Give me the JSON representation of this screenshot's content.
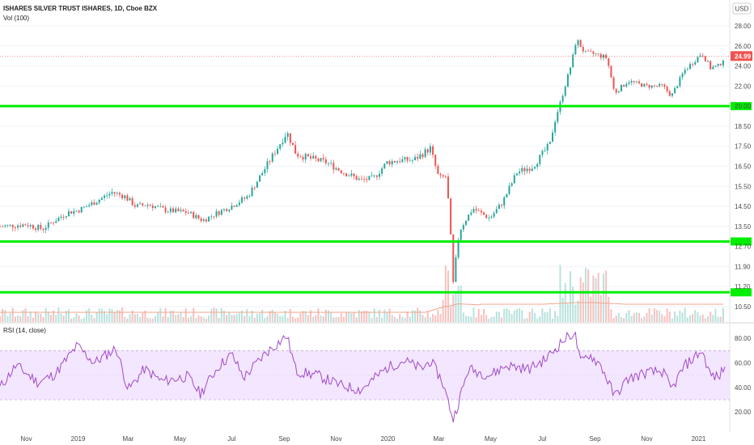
{
  "header": {
    "title": "ISHARES SILVER TRUST ISHARES, 1D, Cboe BZX",
    "vol_label": "Vol (100)",
    "currency": "USD"
  },
  "rsi": {
    "label": "RSI (14, close)"
  },
  "colors": {
    "up": "#26a69a",
    "down": "#ef5350",
    "level_line": "#00ee00",
    "rsi_line": "#a04bc7",
    "rsi_band": "#eedcff",
    "price_badge": "#ef5350",
    "ma_line": "#f2a48c"
  },
  "chart_data": [
    {
      "type": "candlestick",
      "title": "ISHARES SILVER TRUST ISHARES, 1D, Cboe BZX",
      "y_ticks": [
        "28.00",
        "26.00",
        "24.00",
        "22.00",
        "20.00",
        "18.50",
        "17.50",
        "16.50",
        "15.50",
        "14.50",
        "13.50",
        "12.70",
        "11.90",
        "11.20",
        "10.50"
      ],
      "x_ticks": [
        "Nov",
        "2019",
        "Mar",
        "May",
        "Jul",
        "Sep",
        "Nov",
        "2020",
        "Mar",
        "May",
        "Jul",
        "Sep",
        "Nov",
        "2021"
      ],
      "last_price": "24.99",
      "horizontal_levels": [
        20.0,
        12.9,
        11.0
      ],
      "price_path": [
        [
          "2018-10-01",
          13.5
        ],
        [
          "2018-11-01",
          13.6
        ],
        [
          "2018-11-20",
          13.4
        ],
        [
          "2018-12-20",
          14.2
        ],
        [
          "2019-01-01",
          14.3
        ],
        [
          "2019-01-20",
          14.7
        ],
        [
          "2019-02-10",
          15.2
        ],
        [
          "2019-02-25",
          15.0
        ],
        [
          "2019-03-10",
          14.5
        ],
        [
          "2019-03-25",
          14.6
        ],
        [
          "2019-04-15",
          14.3
        ],
        [
          "2019-05-10",
          14.2
        ],
        [
          "2019-05-28",
          13.8
        ],
        [
          "2019-06-15",
          14.2
        ],
        [
          "2019-06-30",
          14.5
        ],
        [
          "2019-07-20",
          15.0
        ],
        [
          "2019-08-15",
          16.8
        ],
        [
          "2019-09-04",
          18.2
        ],
        [
          "2019-09-15",
          17.1
        ],
        [
          "2019-10-01",
          16.9
        ],
        [
          "2019-10-20",
          16.7
        ],
        [
          "2019-11-10",
          16.2
        ],
        [
          "2019-11-30",
          15.8
        ],
        [
          "2019-12-15",
          15.9
        ],
        [
          "2019-12-31",
          16.7
        ],
        [
          "2020-01-15",
          16.8
        ],
        [
          "2020-01-31",
          16.8
        ],
        [
          "2020-02-20",
          17.4
        ],
        [
          "2020-03-01",
          15.9
        ],
        [
          "2020-03-10",
          16.0
        ],
        [
          "2020-03-18",
          11.3
        ],
        [
          "2020-03-25",
          13.3
        ],
        [
          "2020-04-10",
          14.4
        ],
        [
          "2020-04-30",
          13.9
        ],
        [
          "2020-05-15",
          14.7
        ],
        [
          "2020-06-01",
          16.2
        ],
        [
          "2020-06-20",
          16.5
        ],
        [
          "2020-07-10",
          17.6
        ],
        [
          "2020-07-22",
          20.3
        ],
        [
          "2020-08-05",
          24.5
        ],
        [
          "2020-08-10",
          26.7
        ],
        [
          "2020-08-20",
          25.3
        ],
        [
          "2020-09-01",
          25.2
        ],
        [
          "2020-09-15",
          24.8
        ],
        [
          "2020-09-24",
          21.3
        ],
        [
          "2020-10-10",
          22.5
        ],
        [
          "2020-10-31",
          22.0
        ],
        [
          "2020-11-20",
          22.0
        ],
        [
          "2020-11-30",
          21.0
        ],
        [
          "2020-12-15",
          23.5
        ],
        [
          "2021-01-05",
          25.3
        ],
        [
          "2021-01-15",
          23.8
        ],
        [
          "2021-01-25",
          24.0
        ],
        [
          "2021-02-01",
          24.99
        ]
      ],
      "volume_series_name": "Vol (100)",
      "moving_average": "Vol (100)"
    },
    {
      "type": "line",
      "title": "RSI (14, close)",
      "y_ticks": [
        "80.00",
        "60.00",
        "40.00",
        "20.00"
      ],
      "band": [
        30,
        70
      ],
      "rsi_path": [
        [
          "2018-10-01",
          40
        ],
        [
          "2018-10-20",
          58
        ],
        [
          "2018-11-15",
          44
        ],
        [
          "2018-12-05",
          51
        ],
        [
          "2018-12-31",
          74
        ],
        [
          "2019-01-20",
          60
        ],
        [
          "2019-02-15",
          72
        ],
        [
          "2019-03-01",
          38
        ],
        [
          "2019-03-20",
          55
        ],
        [
          "2019-04-10",
          45
        ],
        [
          "2019-05-10",
          49
        ],
        [
          "2019-05-25",
          35
        ],
        [
          "2019-06-15",
          57
        ],
        [
          "2019-07-01",
          67
        ],
        [
          "2019-07-15",
          48
        ],
        [
          "2019-08-10",
          68
        ],
        [
          "2019-09-04",
          82
        ],
        [
          "2019-09-15",
          53
        ],
        [
          "2019-10-10",
          50
        ],
        [
          "2019-11-05",
          42
        ],
        [
          "2019-11-30",
          38
        ],
        [
          "2019-12-31",
          56
        ],
        [
          "2020-01-20",
          62
        ],
        [
          "2020-02-10",
          55
        ],
        [
          "2020-02-20",
          62
        ],
        [
          "2020-03-05",
          45
        ],
        [
          "2020-03-18",
          14
        ],
        [
          "2020-04-05",
          55
        ],
        [
          "2020-04-30",
          50
        ],
        [
          "2020-05-20",
          58
        ],
        [
          "2020-06-15",
          55
        ],
        [
          "2020-07-05",
          63
        ],
        [
          "2020-07-25",
          78
        ],
        [
          "2020-08-08",
          85
        ],
        [
          "2020-08-15",
          60
        ],
        [
          "2020-08-25",
          67
        ],
        [
          "2020-09-08",
          58
        ],
        [
          "2020-09-24",
          33
        ],
        [
          "2020-10-10",
          47
        ],
        [
          "2020-10-31",
          52
        ],
        [
          "2020-11-20",
          53
        ],
        [
          "2020-11-30",
          38
        ],
        [
          "2020-12-15",
          57
        ],
        [
          "2021-01-05",
          70
        ],
        [
          "2021-01-15",
          50
        ],
        [
          "2021-01-25",
          48
        ],
        [
          "2021-02-01",
          58
        ]
      ]
    }
  ]
}
